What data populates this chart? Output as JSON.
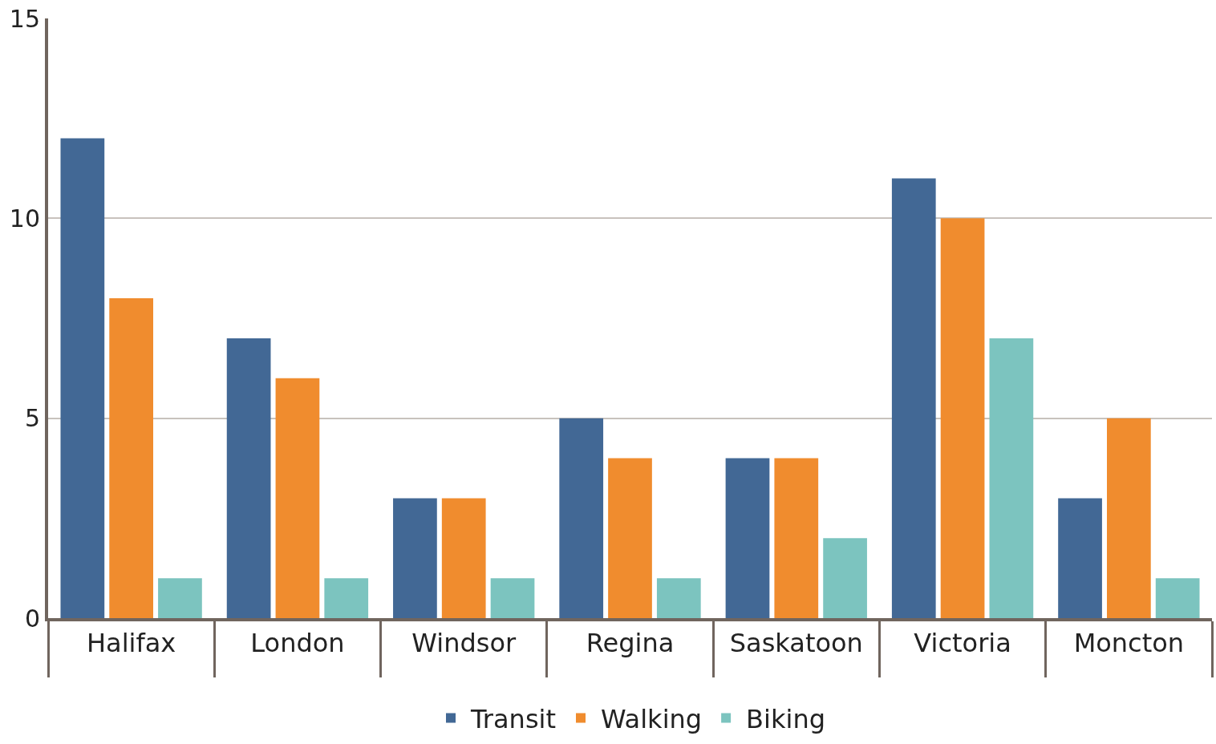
{
  "chart_data": {
    "type": "bar",
    "categories": [
      "Halifax",
      "London",
      "Windsor",
      "Regina",
      "Saskatoon",
      "Victoria",
      "Moncton"
    ],
    "series": [
      {
        "name": "Transit",
        "color": "#426895",
        "values": [
          12,
          7,
          3,
          5,
          4,
          11,
          3
        ]
      },
      {
        "name": "Walking",
        "color": "#f08c2e",
        "values": [
          8,
          6,
          3,
          4,
          4,
          10,
          5
        ]
      },
      {
        "name": "Biking",
        "color": "#7cc4bf",
        "values": [
          1,
          1,
          1,
          1,
          2,
          7,
          1
        ]
      }
    ],
    "ylim": [
      0,
      15
    ],
    "yticks": [
      0,
      5,
      10,
      15
    ],
    "grid": "y",
    "legend": "bottom"
  }
}
